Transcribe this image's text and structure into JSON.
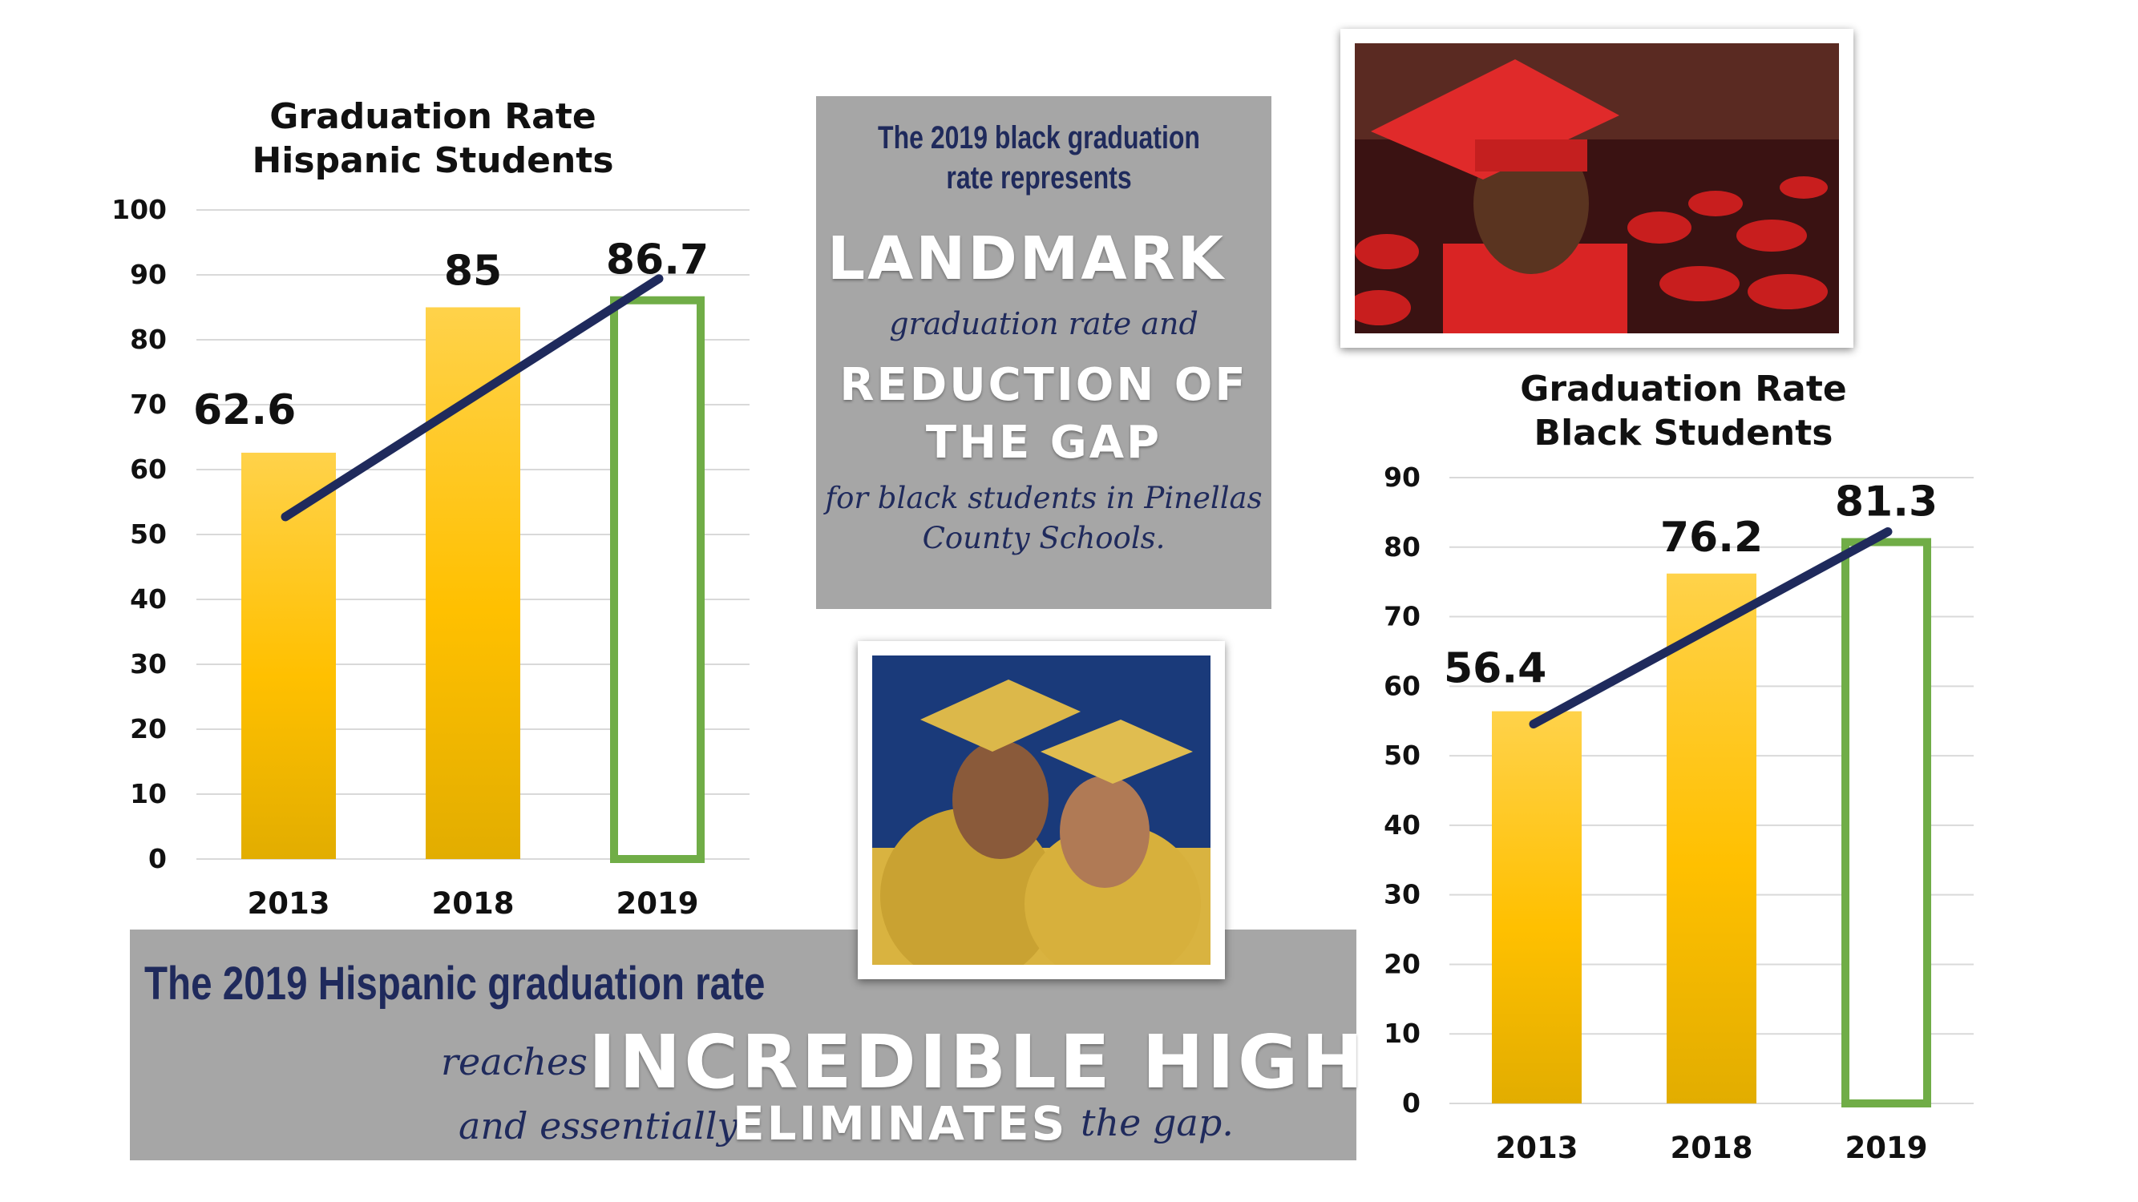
{
  "chart_data": [
    {
      "type": "bar",
      "title": "Graduation Rate\nHispanic Students",
      "title_line1": "Graduation Rate",
      "title_line2": "Hispanic Students",
      "categories": [
        "2013",
        "2018",
        "2019"
      ],
      "values": [
        62.6,
        85,
        86.7
      ],
      "value_labels": [
        "62.6",
        "85",
        "86.7"
      ],
      "ylim": [
        0,
        100
      ],
      "yticks": [
        0,
        10,
        20,
        30,
        40,
        50,
        60,
        70,
        80,
        90,
        100
      ],
      "grid": true,
      "trend_line": true,
      "colors": {
        "bar": "#ffc000",
        "highlight_bar_outline": "#70ad47",
        "trend": "#1f2a5c"
      }
    },
    {
      "type": "bar",
      "title": "Graduation Rate\nBlack Students",
      "title_line1": "Graduation Rate",
      "title_line2": "Black Students",
      "categories": [
        "2013",
        "2018",
        "2019"
      ],
      "values": [
        56.4,
        76.2,
        81.3
      ],
      "value_labels": [
        "56.4",
        "76.2",
        "81.3"
      ],
      "ylim": [
        0,
        90
      ],
      "yticks": [
        0,
        10,
        20,
        30,
        40,
        50,
        60,
        70,
        80,
        90
      ],
      "grid": true,
      "trend_line": true,
      "colors": {
        "bar": "#ffc000",
        "highlight_bar_outline": "#70ad47",
        "trend": "#1f2a5c"
      }
    }
  ],
  "black_callout": {
    "line1": "The 2019 black graduation",
    "line2": "rate represents",
    "landmark": "LANDMARK",
    "middle": "graduation rate and",
    "reduction1": "REDUCTION OF",
    "reduction2": "THE GAP",
    "tail1": "for black students in Pinellas",
    "tail2": "County Schools."
  },
  "hispanic_callout": {
    "headline": "The 2019 Hispanic graduation rate",
    "reaches": "reaches",
    "incredible": "INCREDIBLE HIGH",
    "and_essentially": "and essentially",
    "eliminates": "ELIMINATES",
    "the_gap": "the gap."
  },
  "colors": {
    "panel": "#a6a6a6",
    "navy": "#1f2a5c",
    "gold": "#ffc000",
    "green": "#70ad47"
  }
}
